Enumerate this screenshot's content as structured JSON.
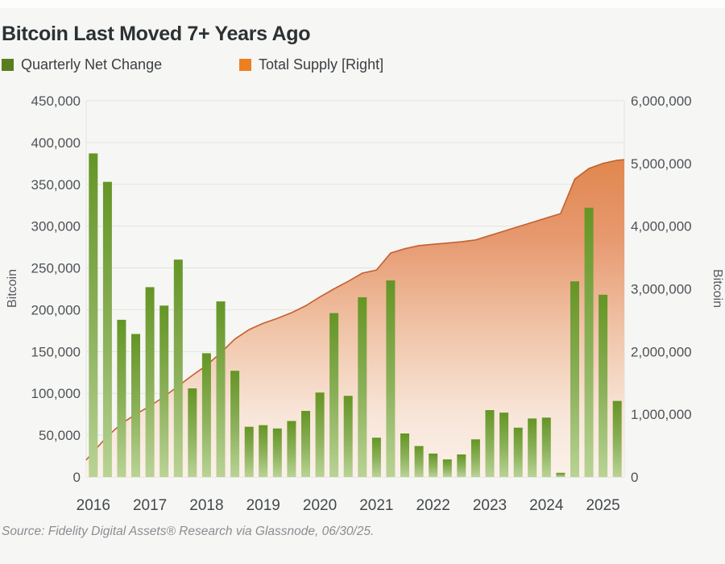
{
  "title": "Bitcoin Last Moved 7+ Years Ago",
  "legend": [
    {
      "label": "Quarterly Net Change",
      "color": "#577f1f"
    },
    {
      "label": "Total Supply [Right]",
      "color": "#ee7f1f"
    }
  ],
  "source": "Source: Fidelity Digital Assets® Research via Glassnode, 06/30/25.",
  "left_axis": {
    "title": "Bitcoin",
    "tick_values": [
      0,
      50000,
      100000,
      150000,
      200000,
      250000,
      300000,
      350000,
      400000,
      450000
    ],
    "tick_labels": [
      "0",
      "50,000",
      "100,000",
      "150,000",
      "200,000",
      "250,000",
      "300,000",
      "350,000",
      "400,000",
      "450,000"
    ],
    "max": 450000
  },
  "right_axis": {
    "title": "Bitcoin",
    "tick_values": [
      0,
      1000000,
      2000000,
      3000000,
      4000000,
      5000000,
      6000000
    ],
    "tick_labels": [
      "0",
      "1,000,000",
      "2,000,000",
      "3,000,000",
      "4,000,000",
      "5,000,000",
      "6,000,000"
    ],
    "max": 6000000
  },
  "x_axis": {
    "year_labels": [
      "2016",
      "2017",
      "2018",
      "2019",
      "2020",
      "2021",
      "2022",
      "2023",
      "2024",
      "2025"
    ]
  },
  "chart_data": {
    "type": "combo",
    "x": [
      "2016 Q1",
      "2016 Q2",
      "2016 Q3",
      "2016 Q4",
      "2017 Q1",
      "2017 Q2",
      "2017 Q3",
      "2017 Q4",
      "2018 Q1",
      "2018 Q2",
      "2018 Q3",
      "2018 Q4",
      "2019 Q1",
      "2019 Q2",
      "2019 Q3",
      "2019 Q4",
      "2020 Q1",
      "2020 Q2",
      "2020 Q3",
      "2020 Q4",
      "2021 Q1",
      "2021 Q2",
      "2021 Q3",
      "2021 Q4",
      "2022 Q1",
      "2022 Q2",
      "2022 Q3",
      "2022 Q4",
      "2023 Q1",
      "2023 Q2",
      "2023 Q3",
      "2023 Q4",
      "2024 Q1",
      "2024 Q2",
      "2024 Q3",
      "2024 Q4",
      "2025 Q1",
      "2025 Q2"
    ],
    "series": [
      {
        "name": "Quarterly Net Change",
        "type": "bar",
        "axis": "left",
        "color_top": "#649525",
        "color_bottom": "#b5d08f",
        "values": [
          387000,
          353000,
          188000,
          171000,
          227000,
          205000,
          260000,
          106000,
          148000,
          210000,
          127000,
          60000,
          62000,
          58000,
          67000,
          79000,
          101000,
          196000,
          97000,
          215000,
          47000,
          235000,
          52000,
          37000,
          28000,
          21000,
          27000,
          45000,
          80000,
          77000,
          59000,
          70000,
          71000,
          5000,
          234000,
          322000,
          218000,
          91000
        ]
      },
      {
        "name": "Total Supply [Right]",
        "type": "area",
        "axis": "right",
        "line_color": "#c4612e",
        "fill_top": "#df8145",
        "fill_bottom": "#fbf1ea",
        "edge_start_value": 270000,
        "edge_end_value": 5060000,
        "values": [
          400000,
          650000,
          850000,
          1000000,
          1130000,
          1280000,
          1450000,
          1620000,
          1780000,
          1980000,
          2200000,
          2350000,
          2450000,
          2530000,
          2620000,
          2730000,
          2870000,
          3000000,
          3120000,
          3250000,
          3300000,
          3570000,
          3640000,
          3690000,
          3710000,
          3730000,
          3750000,
          3780000,
          3850000,
          3920000,
          3990000,
          4060000,
          4130000,
          4200000,
          4750000,
          4920000,
          5000000,
          5050000
        ]
      }
    ],
    "title": "Bitcoin Last Moved 7+ Years Ago",
    "ylabel_left": "Bitcoin",
    "ylabel_right": "Bitcoin",
    "ylim_left": [
      0,
      450000
    ],
    "ylim_right": [
      0,
      6000000
    ],
    "grid": "horizontal",
    "legend_position": "top-left"
  }
}
